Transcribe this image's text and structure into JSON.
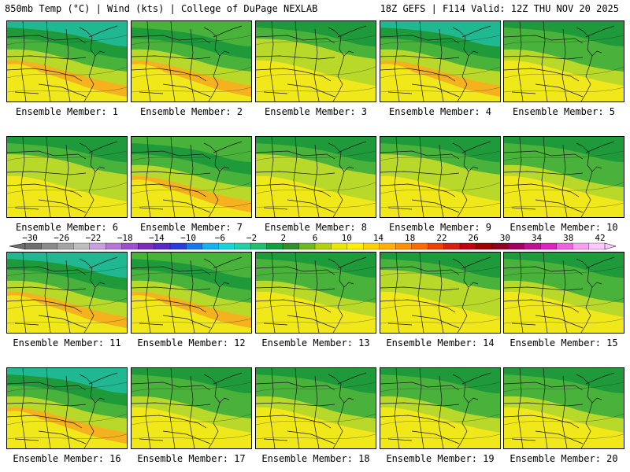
{
  "header": {
    "left": "850mb Temp (°C) | Wind (kts) | College of DuPage NEXLAB",
    "right": "18Z GEFS | F114 Valid: 12Z THU NOV 20 2025"
  },
  "caption_prefix": "Ensemble Member:",
  "members": [
    {
      "label": "Ensemble Member: 1",
      "style": 0
    },
    {
      "label": "Ensemble Member: 2",
      "style": 1
    },
    {
      "label": "Ensemble Member: 3",
      "style": 2
    },
    {
      "label": "Ensemble Member: 4",
      "style": 0
    },
    {
      "label": "Ensemble Member: 5",
      "style": 3
    },
    {
      "label": "Ensemble Member: 6",
      "style": 2
    },
    {
      "label": "Ensemble Member: 7",
      "style": 1
    },
    {
      "label": "Ensemble Member: 8",
      "style": 2
    },
    {
      "label": "Ensemble Member: 9",
      "style": 2
    },
    {
      "label": "Ensemble Member: 10",
      "style": 3
    },
    {
      "label": "Ensemble Member: 11",
      "style": 0
    },
    {
      "label": "Ensemble Member: 12",
      "style": 1
    },
    {
      "label": "Ensemble Member: 13",
      "style": 3
    },
    {
      "label": "Ensemble Member: 14",
      "style": 2
    },
    {
      "label": "Ensemble Member: 15",
      "style": 3
    },
    {
      "label": "Ensemble Member: 16",
      "style": 0
    },
    {
      "label": "Ensemble Member: 17",
      "style": 3
    },
    {
      "label": "Ensemble Member: 18",
      "style": 3
    },
    {
      "label": "Ensemble Member: 19",
      "style": 3
    },
    {
      "label": "Ensemble Member: 20",
      "style": 3
    }
  ],
  "colorbar": {
    "ticks": [
      "−30",
      "−26",
      "−22",
      "−18",
      "−14",
      "−10",
      "−6",
      "−2",
      "2",
      "6",
      "10",
      "14",
      "18",
      "22",
      "26",
      "30",
      "34",
      "38",
      "42"
    ],
    "colors": [
      "#6e6e6e",
      "#8a8a8a",
      "#a4a4a4",
      "#bebebe",
      "#c8a0e0",
      "#b478dc",
      "#9a50d0",
      "#7a2cc0",
      "#5a28c8",
      "#2a3ce0",
      "#1878f0",
      "#10b4f0",
      "#18d4d8",
      "#20d0a8",
      "#20c070",
      "#10a040",
      "#309030",
      "#70b820",
      "#b0d010",
      "#e8e800",
      "#fff000",
      "#ffd000",
      "#ffb000",
      "#ff9000",
      "#ff6a00",
      "#f04000",
      "#d82010",
      "#c00010",
      "#a00000",
      "#900020",
      "#a00060",
      "#c01090",
      "#e020c0",
      "#f060e0",
      "#f8a0f0",
      "#ffc8ff"
    ]
  },
  "palette": {
    "green_dark": "#1f9a3a",
    "green": "#48b23a",
    "yellow_green": "#b8d82a",
    "yellow": "#f0e81a",
    "orange": "#f5b21e",
    "cyan": "#10c8c0",
    "teal": "#20b890",
    "blue": "#1a8ae0"
  }
}
